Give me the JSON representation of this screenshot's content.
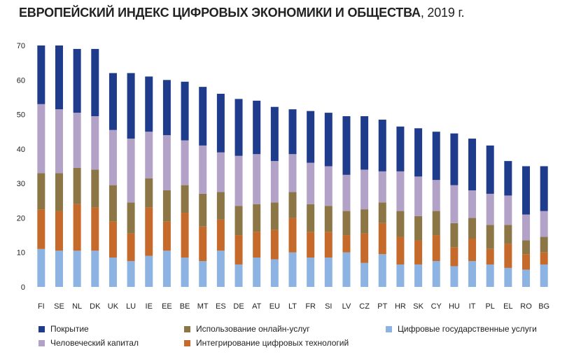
{
  "chart_data": {
    "type": "bar",
    "stacked": true,
    "title": "ЕВРОПЕЙСКИЙ ИНДЕКС ЦИФРОВЫХ ЭКОНОМИКИ И ОБЩЕСТВА",
    "title_year": ", 2019 г.",
    "ylim": [
      0,
      70
    ],
    "yticks": [
      0,
      10,
      20,
      30,
      40,
      50,
      60,
      70
    ],
    "categories": [
      "FI",
      "SE",
      "NL",
      "DK",
      "UK",
      "LU",
      "IE",
      "EE",
      "BE",
      "MT",
      "ES",
      "DE",
      "AT",
      "EU",
      "LT",
      "FR",
      "SI",
      "LV",
      "CZ",
      "PT",
      "HR",
      "SK",
      "CY",
      "HU",
      "IT",
      "PL",
      "EL",
      "RO",
      "BG"
    ],
    "series": [
      {
        "name": "Цифровые государственные услуги",
        "color": "#8db3e2",
        "values": [
          11.0,
          10.5,
          10.5,
          10.5,
          8.5,
          7.5,
          9.0,
          10.5,
          8.5,
          7.5,
          10.5,
          6.5,
          8.5,
          8.0,
          10.0,
          8.5,
          8.5,
          10.0,
          7.0,
          9.5,
          6.5,
          6.5,
          7.5,
          6.0,
          7.5,
          6.5,
          5.5,
          5.0,
          6.5
        ]
      },
      {
        "name": "Интегрирование цифровых технологий",
        "color": "#c56a2a",
        "values": [
          11.5,
          11.5,
          13.5,
          12.5,
          10.5,
          8.0,
          14.0,
          8.5,
          13.0,
          10.0,
          9.0,
          8.5,
          7.5,
          8.5,
          10.0,
          7.5,
          7.5,
          5.0,
          8.5,
          9.0,
          8.0,
          7.0,
          7.5,
          5.5,
          6.5,
          4.5,
          7.0,
          4.5,
          3.5
        ]
      },
      {
        "name": "Использование онлайн-услуг",
        "color": "#8d7646",
        "values": [
          10.5,
          11.0,
          10.5,
          11.0,
          10.5,
          9.0,
          8.5,
          9.0,
          8.0,
          9.5,
          8.0,
          8.5,
          8.0,
          8.0,
          7.5,
          8.0,
          7.5,
          7.0,
          7.0,
          6.0,
          7.5,
          7.0,
          7.0,
          7.0,
          6.0,
          7.0,
          5.5,
          4.0,
          4.5
        ]
      },
      {
        "name": "Человеческий капитал",
        "color": "#b3a2c7",
        "values": [
          20.0,
          18.5,
          16.0,
          15.5,
          16.0,
          18.5,
          13.5,
          16.0,
          13.0,
          14.0,
          11.5,
          14.5,
          14.5,
          12.0,
          11.0,
          12.0,
          11.5,
          10.5,
          11.5,
          9.0,
          11.5,
          11.5,
          9.0,
          11.0,
          8.0,
          9.0,
          8.5,
          7.5,
          7.5
        ]
      },
      {
        "name": "Покрытие",
        "color": "#1f3b8c",
        "values": [
          17.0,
          18.5,
          18.5,
          19.5,
          16.5,
          19.0,
          16.0,
          16.0,
          17.0,
          17.0,
          17.0,
          16.5,
          15.5,
          15.7,
          13.0,
          15.0,
          15.5,
          17.0,
          15.5,
          15.0,
          13.0,
          14.0,
          14.0,
          15.0,
          15.0,
          14.0,
          10.0,
          14.0,
          13.0
        ]
      }
    ],
    "legend": [
      {
        "label": "Покрытие",
        "color": "#1f3b8c"
      },
      {
        "label": "Использование онлайн-услуг",
        "color": "#8d7646"
      },
      {
        "label": "Цифровые государственные услуги",
        "color": "#8db3e2"
      },
      {
        "label": "Человеческий капитал",
        "color": "#b3a2c7"
      },
      {
        "label": "Интегрирование цифровых технологий",
        "color": "#c56a2a"
      }
    ]
  }
}
